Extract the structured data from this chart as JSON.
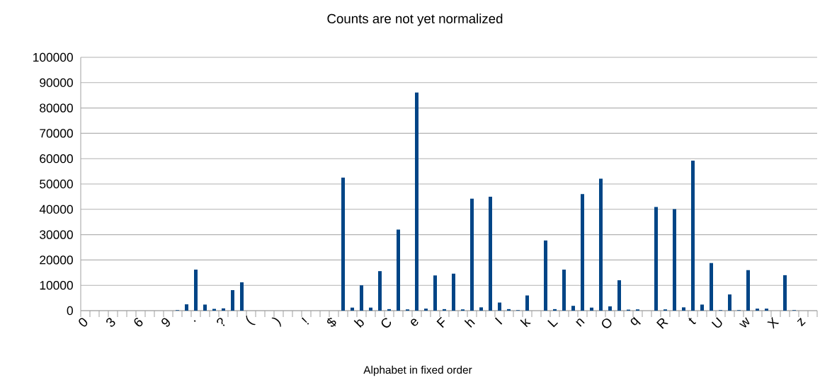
{
  "chart_data": {
    "type": "bar",
    "title": "Counts are not yet normalized",
    "xlabel": "Alphabet in fixed order",
    "categories": [
      "0",
      null,
      null,
      "3",
      null,
      null,
      "6",
      null,
      null,
      "9",
      null,
      null,
      ".",
      null,
      null,
      "?",
      null,
      null,
      "(",
      null,
      null,
      ")",
      null,
      null,
      "!",
      null,
      null,
      "$",
      null,
      null,
      "b",
      null,
      null,
      "C",
      null,
      null,
      "e",
      null,
      null,
      "F",
      null,
      null,
      "h",
      null,
      null,
      "I",
      null,
      null,
      "k",
      null,
      null,
      "L",
      null,
      null,
      "n",
      null,
      null,
      "O",
      null,
      null,
      "q",
      null,
      null,
      "R",
      null,
      null,
      "t",
      null,
      null,
      "U",
      null,
      null,
      "w",
      null,
      null,
      "X",
      null,
      null,
      "z",
      null
    ],
    "values": [
      0,
      0,
      0,
      0,
      0,
      0,
      0,
      0,
      0,
      0,
      200,
      2500,
      16200,
      2400,
      700,
      900,
      8100,
      11200,
      0,
      0,
      0,
      0,
      0,
      0,
      0,
      0,
      0,
      0,
      52500,
      1200,
      10000,
      1200,
      15600,
      600,
      32000,
      500,
      86100,
      800,
      13900,
      600,
      14600,
      500,
      44200,
      1300,
      45000,
      3200,
      600,
      200,
      6000,
      0,
      27700,
      600,
      16200,
      1900,
      46000,
      1200,
      52100,
      1700,
      12000,
      400,
      500,
      0,
      40900,
      500,
      40100,
      1300,
      59200,
      2400,
      18800,
      200,
      6400,
      200,
      16000,
      800,
      800,
      0,
      14000,
      200,
      0,
      0
    ],
    "color": "#004586",
    "ylim": [
      0,
      100000
    ],
    "yticks": [
      0,
      10000,
      20000,
      30000,
      40000,
      50000,
      60000,
      70000,
      80000,
      90000,
      100000
    ],
    "grid": "y"
  }
}
